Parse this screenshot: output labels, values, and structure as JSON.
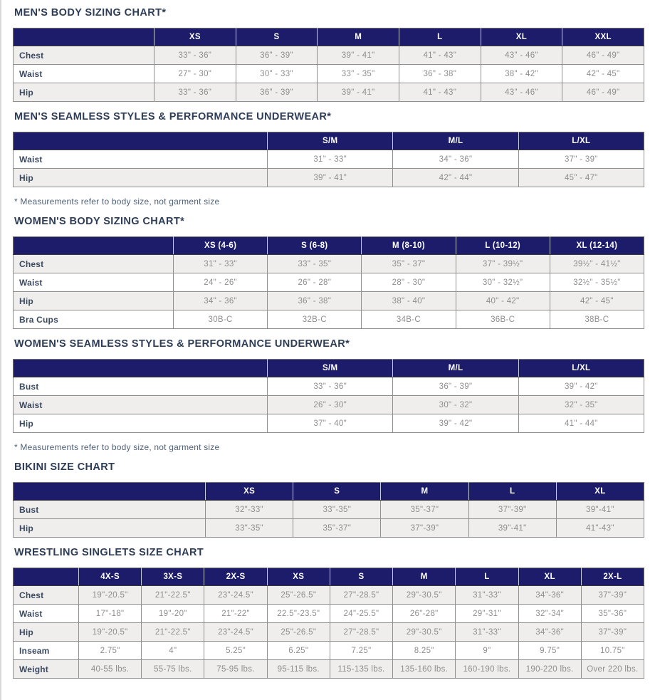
{
  "colors": {
    "header_bg": "#1c1c6a",
    "title_text": "#2e3d57",
    "row_label_text": "#3a4961",
    "value_text": "#8e8e8e",
    "shaded_row_bg": "#efeeec"
  },
  "footnote_text": "* Measurements refer to body size, not garment size",
  "tables": [
    {
      "id": "mens-body",
      "title": "MEN'S BODY SIZING CHART*",
      "columns": [
        "XS",
        "S",
        "M",
        "L",
        "XL",
        "XXL"
      ],
      "rows": [
        {
          "label": "Chest",
          "values": [
            "33\" - 36\"",
            "36\" - 39\"",
            "39\" - 41\"",
            "41\" - 43\"",
            "43\" - 46\"",
            "46\" - 49\""
          ]
        },
        {
          "label": "Waist",
          "values": [
            "27\" - 30\"",
            "30\" - 33\"",
            "33\" - 35\"",
            "36\" - 38\"",
            "38\" - 42\"",
            "42\" - 45\""
          ]
        },
        {
          "label": "Hip",
          "values": [
            "33\" - 36\"",
            "36\" - 39\"",
            "39\" - 41\"",
            "41\" - 43\"",
            "43\" - 46\"",
            "46\" - 49\""
          ]
        }
      ],
      "footnote": ""
    },
    {
      "id": "mens-seamless",
      "title": "MEN'S SEAMLESS STYLES & PERFORMANCE UNDERWEAR*",
      "columns": [
        "S/M",
        "M/L",
        "L/XL"
      ],
      "rows": [
        {
          "label": "Waist",
          "values": [
            "31\" - 33\"",
            "34\" - 36\"",
            "37\" - 39\""
          ]
        },
        {
          "label": "Hip",
          "values": [
            "39\" - 41\"",
            "42\" - 44\"",
            "45\" - 47\""
          ]
        }
      ],
      "footnote": "* Measurements refer to body size, not garment size"
    },
    {
      "id": "womens-body",
      "title": "WOMEN'S BODY SIZING CHART*",
      "columns": [
        "XS (4-6)",
        "S (6-8)",
        "M (8-10)",
        "L (10-12)",
        "XL (12-14)"
      ],
      "rows": [
        {
          "label": "Chest",
          "values": [
            "31\" - 33\"",
            "33\" - 35\"",
            "35\" - 37\"",
            "37\" - 39½\"",
            "39½\" - 41½\""
          ]
        },
        {
          "label": "Waist",
          "values": [
            "24\" - 26\"",
            "26\" - 28\"",
            "28\" - 30\"",
            "30\" - 32½\"",
            "32½\" - 35½\""
          ]
        },
        {
          "label": "Hip",
          "values": [
            "34\" - 36\"",
            "36\" - 38\"",
            "38\" - 40\"",
            "40\" - 42\"",
            "42\" - 45\""
          ]
        },
        {
          "label": "Bra Cups",
          "values": [
            "30B-C",
            "32B-C",
            "34B-C",
            "36B-C",
            "38B-C"
          ]
        }
      ],
      "footnote": ""
    },
    {
      "id": "womens-seamless",
      "title": "WOMEN'S SEAMLESS STYLES & PERFORMANCE UNDERWEAR*",
      "columns": [
        "S/M",
        "M/L",
        "L/XL"
      ],
      "rows": [
        {
          "label": "Bust",
          "values": [
            "33\" - 36\"",
            "36\" - 39\"",
            "39\" - 42\""
          ]
        },
        {
          "label": "Waist",
          "values": [
            "26\" - 30\"",
            "30\" - 32\"",
            "32\" - 35\""
          ]
        },
        {
          "label": "Hip",
          "values": [
            "37\" - 40\"",
            "39\" - 42\"",
            "41\" - 44\""
          ]
        }
      ],
      "footnote": "* Measurements refer to body size, not garment size"
    },
    {
      "id": "bikini",
      "title": "BIKINI SIZE CHART",
      "columns": [
        "XS",
        "S",
        "M",
        "L",
        "XL"
      ],
      "rows": [
        {
          "label": "Bust",
          "values": [
            "32\"-33\"",
            "33\"-35\"",
            "35\"-37\"",
            "37\"-39\"",
            "39\"-41\""
          ]
        },
        {
          "label": "Hip",
          "values": [
            "33\"-35\"",
            "35\"-37\"",
            "37\"-39\"",
            "39\"-41\"",
            "41\"-43\""
          ]
        }
      ],
      "footnote": ""
    },
    {
      "id": "wrestling",
      "title": "WRESTLING SINGLETS SIZE CHART",
      "columns": [
        "4X-S",
        "3X-S",
        "2X-S",
        "XS",
        "S",
        "M",
        "L",
        "XL",
        "2X-L"
      ],
      "rows": [
        {
          "label": "Chest",
          "values": [
            "19\"-20.5\"",
            "21\"-22.5\"",
            "23\"-24.5\"",
            "25\"-26.5\"",
            "27\"-28.5\"",
            "29\"-30.5\"",
            "31\"-33\"",
            "34\"-36\"",
            "37\"-39\""
          ]
        },
        {
          "label": "Waist",
          "values": [
            "17\"-18\"",
            "19\"-20\"",
            "21\"-22\"",
            "22.5\"-23.5\"",
            "24\"-25.5\"",
            "26\"-28\"",
            "29\"-31\"",
            "32\"-34\"",
            "35\"-36\""
          ]
        },
        {
          "label": "Hip",
          "values": [
            "19\"-20.5\"",
            "21\"-22.5\"",
            "23\"-24.5\"",
            "25\"-26.5\"",
            "27\"-28.5\"",
            "29\"-30.5\"",
            "31\"-33\"",
            "34\"-36\"",
            "37\"-39\""
          ]
        },
        {
          "label": "Inseam",
          "values": [
            "2.75\"",
            "4\"",
            "5.25\"",
            "6.25\"",
            "7.25\"",
            "8.25\"",
            "9\"",
            "9.75\"",
            "10.75\""
          ]
        },
        {
          "label": "Weight",
          "values": [
            "40-55 lbs.",
            "55-75 lbs.",
            "75-95 lbs.",
            "95-115 lbs.",
            "115-135 lbs.",
            "135-160 lbs.",
            "160-190 lbs.",
            "190-220 lbs.",
            "Over 220 lbs."
          ]
        }
      ],
      "footnote": ""
    }
  ]
}
